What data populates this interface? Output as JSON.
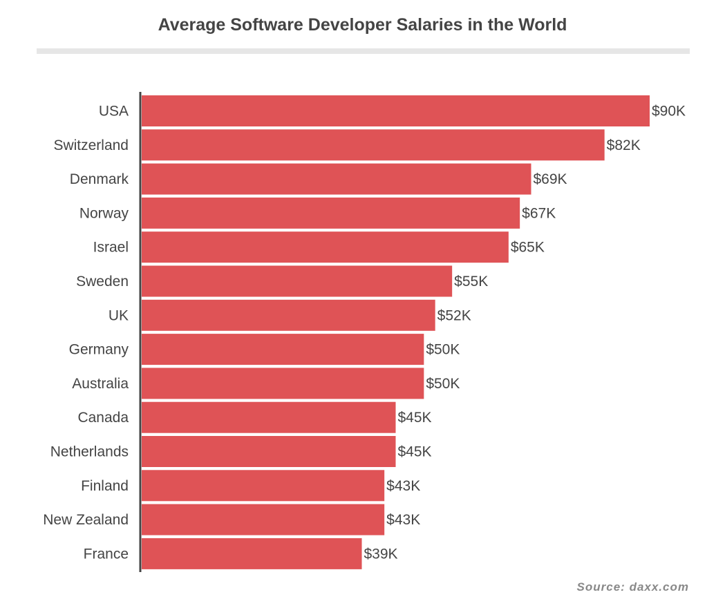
{
  "chart_data": {
    "type": "bar",
    "orientation": "horizontal",
    "title": "Average Software Developer Salaries in the World",
    "categories": [
      "USA",
      "Switzerland",
      "Denmark",
      "Norway",
      "Israel",
      "Sweden",
      "UK",
      "Germany",
      "Australia",
      "Canada",
      "Netherlands",
      "Finland",
      "New Zealand",
      "France"
    ],
    "values": [
      90,
      82,
      69,
      67,
      65,
      55,
      52,
      50,
      50,
      45,
      45,
      43,
      43,
      39
    ],
    "data_labels": [
      "$90K",
      "$82K",
      "$69K",
      "$67K",
      "$65K",
      "$55K",
      "$52K",
      "$50K",
      "$50K",
      "$45K",
      "$45K",
      "$43K",
      "$43K",
      "$39K"
    ],
    "unit": "thousand USD",
    "xlabel": "",
    "ylabel": "",
    "grid": false,
    "bar_color": "#df5356",
    "source": "Source: daxx.com"
  }
}
